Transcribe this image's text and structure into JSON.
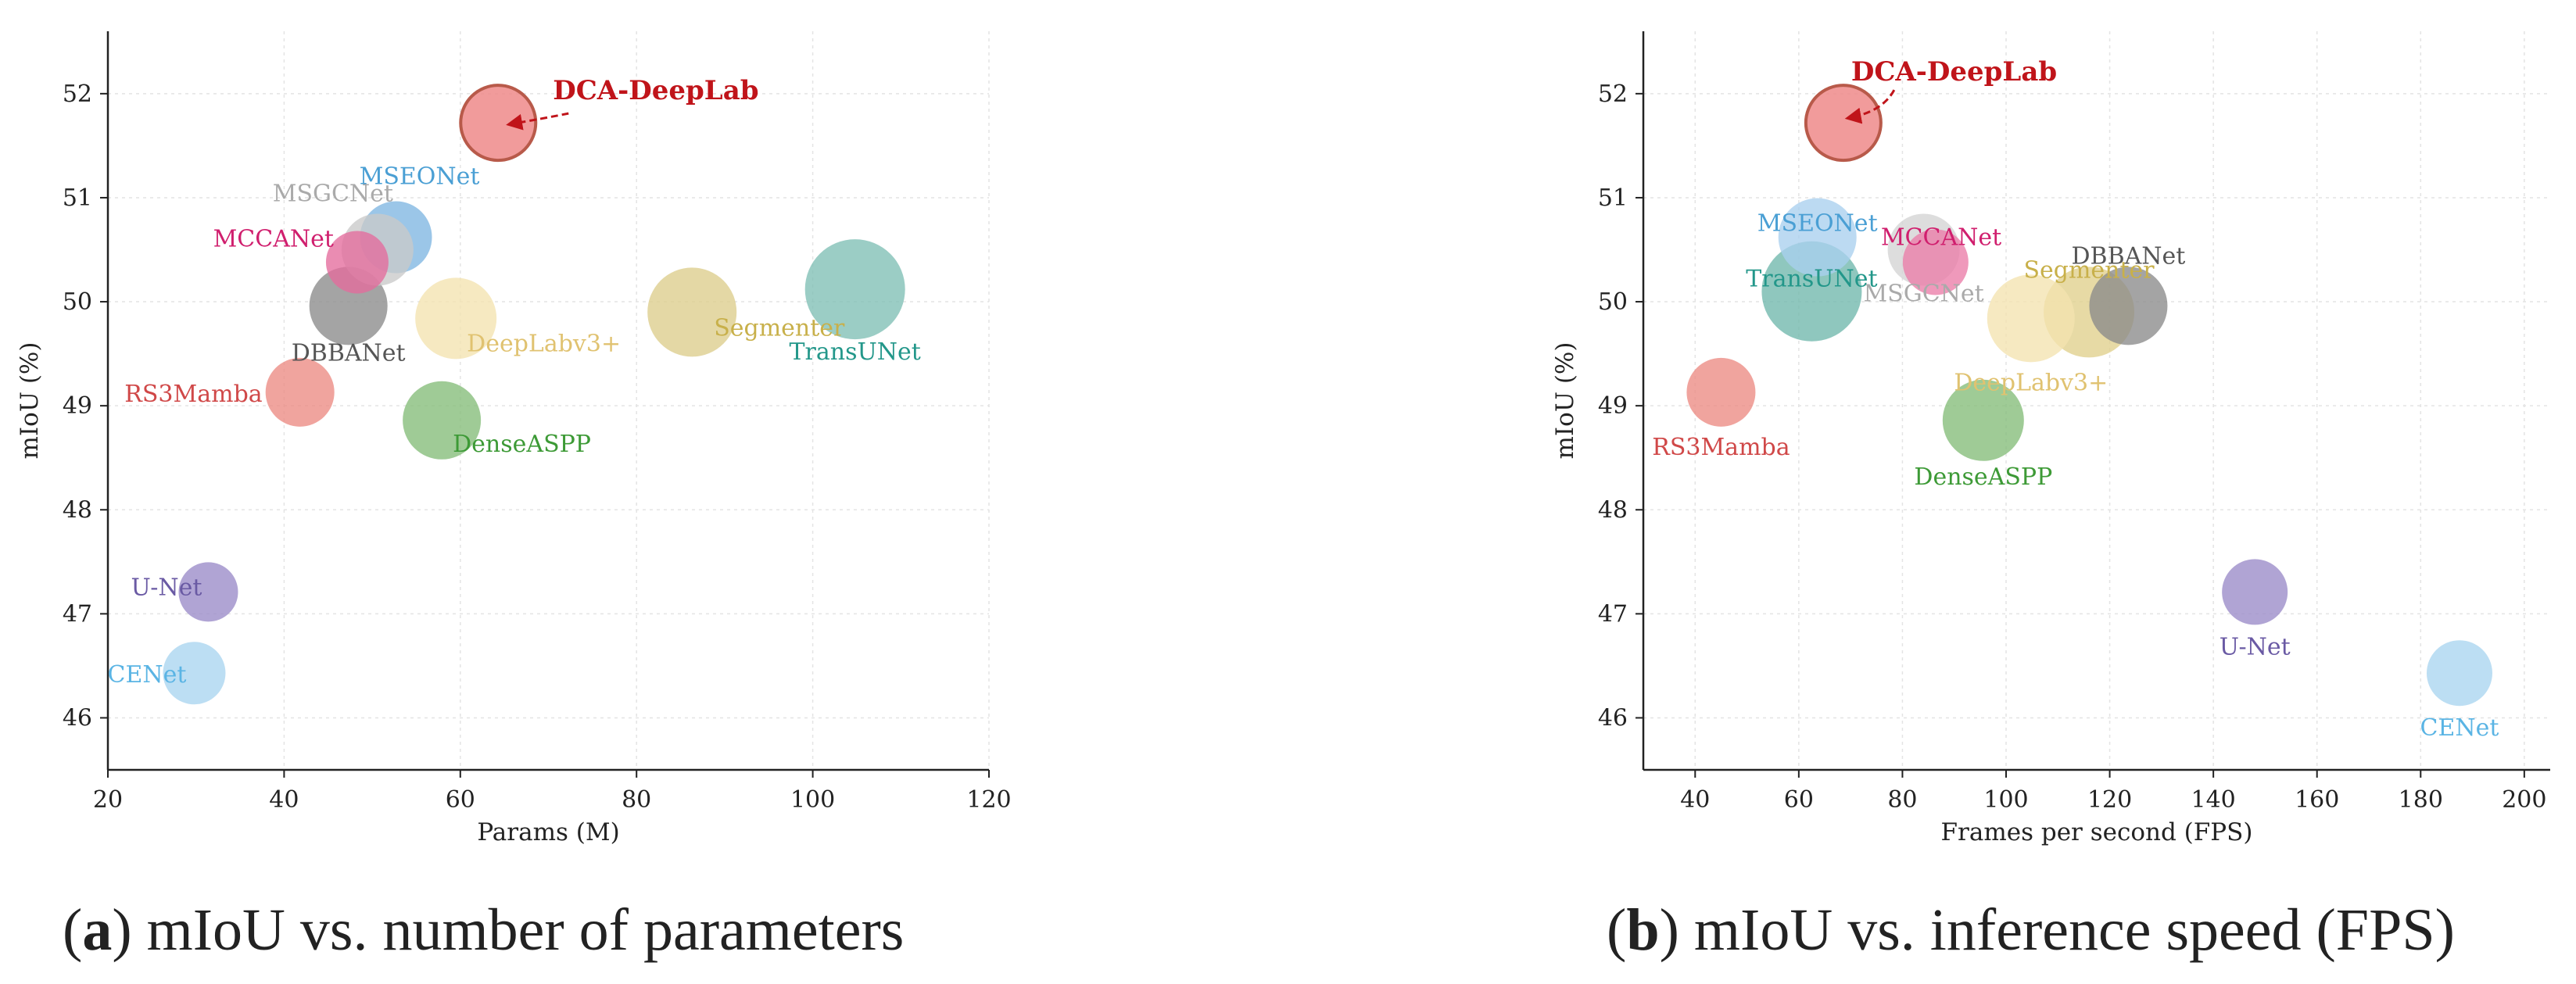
{
  "chart_data": [
    {
      "type": "scatter",
      "caption_letter": "a",
      "caption_text": "mIoU vs. number of parameters",
      "xlabel": "Params (M)",
      "ylabel": "mIoU (%)",
      "xlim": [
        20,
        120
      ],
      "ylim": [
        45.5,
        52.6
      ],
      "xticks": [
        20,
        40,
        60,
        80,
        100,
        120
      ],
      "yticks": [
        46,
        47,
        48,
        49,
        50,
        51,
        52
      ],
      "grid": true,
      "points": [
        {
          "name": "DCA-DeepLab",
          "x": 64.3,
          "y": 51.72,
          "color": "#ef8a8a",
          "edge": "#b85a4a",
          "r": 48,
          "label_dx": 70,
          "label_dy": -30,
          "anchor": "start",
          "highlight": true,
          "label_color": "#c0141a"
        },
        {
          "name": "MSEONet",
          "x": 52.7,
          "y": 50.62,
          "color": "#7fb6e2",
          "r": 46,
          "label_dx": 30,
          "label_dy": -68,
          "anchor": "middle",
          "label_color": "#4a9fd4"
        },
        {
          "name": "MSGCNet",
          "x": 50.6,
          "y": 50.5,
          "color": "#c9c9c9",
          "r": 46,
          "label_dx": -57,
          "label_dy": -62,
          "anchor": "middle",
          "label_color": "#aaaaaa"
        },
        {
          "name": "MCCANet",
          "x": 48.3,
          "y": 50.38,
          "color": "#e46c9c",
          "r": 40,
          "label_dx": -30,
          "label_dy": -20,
          "anchor": "end",
          "label_color": "#d01f6e"
        },
        {
          "name": "DBBANet",
          "x": 47.3,
          "y": 49.96,
          "color": "#8a8a8a",
          "r": 50,
          "label_dx": 0,
          "label_dy": 70,
          "anchor": "middle",
          "label_color": "#555555"
        },
        {
          "name": "DeepLabv3+",
          "x": 59.5,
          "y": 49.84,
          "color": "#f3e3b0",
          "r": 52,
          "label_dx": 14,
          "label_dy": 42,
          "anchor": "start",
          "label_color": "#e0c270"
        },
        {
          "name": "Segmenter",
          "x": 86.3,
          "y": 49.9,
          "color": "#dccd8c",
          "r": 57,
          "label_dx": 28,
          "label_dy": 30,
          "anchor": "start",
          "label_color": "#c8b04a"
        },
        {
          "name": "TransUNet",
          "x": 104.8,
          "y": 50.12,
          "color": "#7fbfb5",
          "r": 64,
          "label_dx": 0,
          "label_dy": 90,
          "anchor": "middle",
          "label_color": "#23978a"
        },
        {
          "name": "RS3Mamba",
          "x": 41.8,
          "y": 49.13,
          "color": "#ec8b83",
          "r": 44,
          "label_dx": -48,
          "label_dy": 12,
          "anchor": "end",
          "label_color": "#d04848"
        },
        {
          "name": "DenseASPP",
          "x": 57.9,
          "y": 48.86,
          "color": "#84bd78",
          "r": 50,
          "label_dx": 14,
          "label_dy": 40,
          "anchor": "start",
          "label_color": "#3d9a36"
        },
        {
          "name": "U-Net",
          "x": 31.4,
          "y": 47.21,
          "color": "#9a8ac8",
          "r": 38,
          "label_dx": -8,
          "label_dy": 4,
          "anchor": "end",
          "label_color": "#6a5aa4"
        },
        {
          "name": "CENet",
          "x": 29.8,
          "y": 46.43,
          "color": "#a9d5f0",
          "r": 40,
          "label_dx": -10,
          "label_dy": 12,
          "anchor": "end",
          "label_color": "#5ab4e4"
        }
      ]
    },
    {
      "type": "scatter",
      "caption_letter": "b",
      "caption_text": "mIoU vs. inference speed (FPS)",
      "xlabel": "Frames per second (FPS)",
      "ylabel": "mIoU (%)",
      "xlim": [
        30,
        205
      ],
      "ylim": [
        45.5,
        52.6
      ],
      "xticks": [
        40,
        60,
        80,
        100,
        120,
        140,
        160,
        180,
        200
      ],
      "yticks": [
        46,
        47,
        48,
        49,
        50,
        51,
        52
      ],
      "grid": true,
      "points": [
        {
          "name": "DCA-DeepLab",
          "x": 68.6,
          "y": 51.72,
          "color": "#ef8a8a",
          "edge": "#b85a4a",
          "r": 48,
          "label_dx": 10,
          "label_dy": -54,
          "anchor": "start",
          "highlight": true,
          "label_color": "#c0141a"
        },
        {
          "name": "MSEONet",
          "x": 63.6,
          "y": 50.62,
          "color": "#a9cfee",
          "r": 50,
          "label_dx": 0,
          "label_dy": -8,
          "anchor": "middle",
          "label_color": "#4a9fd4"
        },
        {
          "name": "MCCANet",
          "x": 86.4,
          "y": 50.38,
          "color": "#ea7ca8",
          "r": 42,
          "label_dx": -70,
          "label_dy": -22,
          "anchor": "start",
          "label_color": "#d01f6e"
        },
        {
          "name": "MSGCNet",
          "x": 84.1,
          "y": 50.5,
          "color": "#d3d3d3",
          "r": 46,
          "label_dx": 0,
          "label_dy": 66,
          "anchor": "middle",
          "label_color": "#aaaaaa"
        },
        {
          "name": "TransUNet",
          "x": 62.5,
          "y": 50.1,
          "color": "#6fb7ac",
          "r": 64,
          "label_dx": 0,
          "label_dy": -6,
          "anchor": "middle",
          "label_color": "#23978a"
        },
        {
          "name": "Segmenter",
          "x": 116.0,
          "y": 49.9,
          "color": "#e0d08c",
          "r": 58,
          "label_dx": 0,
          "label_dy": -44,
          "anchor": "middle",
          "label_color": "#c8b04a"
        },
        {
          "name": "DBBANet",
          "x": 123.6,
          "y": 49.96,
          "color": "#8a8a8a",
          "r": 50,
          "label_dx": 0,
          "label_dy": -54,
          "anchor": "middle",
          "label_color": "#555555"
        },
        {
          "name": "DeepLabv3+",
          "x": 104.8,
          "y": 49.84,
          "color": "#f3e3b0",
          "r": 56,
          "label_dx": 0,
          "label_dy": 92,
          "anchor": "middle",
          "label_color": "#e0c270"
        },
        {
          "name": "RS3Mamba",
          "x": 45.0,
          "y": 49.13,
          "color": "#ec8b83",
          "r": 44,
          "label_dx": 0,
          "label_dy": 80,
          "anchor": "middle",
          "label_color": "#d04848"
        },
        {
          "name": "DenseASPP",
          "x": 95.6,
          "y": 48.86,
          "color": "#84bd78",
          "r": 52,
          "label_dx": 0,
          "label_dy": 82,
          "anchor": "middle",
          "label_color": "#3d9a36"
        },
        {
          "name": "U-Net",
          "x": 148.0,
          "y": 47.21,
          "color": "#9a8ac8",
          "r": 42,
          "label_dx": 0,
          "label_dy": 80,
          "anchor": "middle",
          "label_color": "#6a5aa4"
        },
        {
          "name": "CENet",
          "x": 187.5,
          "y": 46.43,
          "color": "#a9d5f0",
          "r": 42,
          "label_dx": 0,
          "label_dy": 80,
          "anchor": "middle",
          "label_color": "#5ab4e4"
        }
      ]
    }
  ]
}
